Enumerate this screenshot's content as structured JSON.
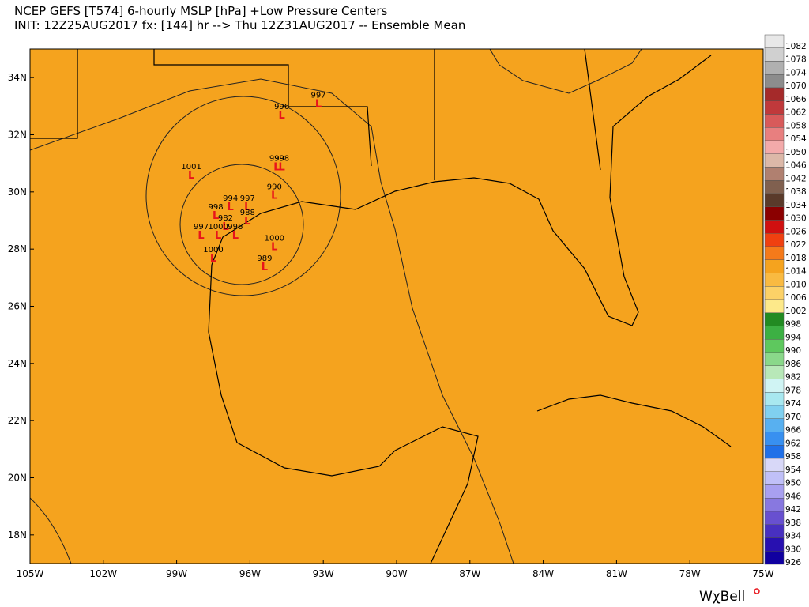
{
  "header": {
    "title": "NCEP GEFS [T574] 6-hourly MSLP [hPa]  +Low Pressure Centers",
    "subtitle": "INIT: 12Z25AUG2017 fx: [144] hr --> Thu 12Z31AUG2017 -- Ensemble Mean"
  },
  "map": {
    "xlim": [
      -105,
      -75
    ],
    "ylim": [
      17,
      35
    ],
    "xticks": [
      {
        "value": -105,
        "label": "105W"
      },
      {
        "value": -102,
        "label": "102W"
      },
      {
        "value": -99,
        "label": "99W"
      },
      {
        "value": -96,
        "label": "96W"
      },
      {
        "value": -93,
        "label": "93W"
      },
      {
        "value": -90,
        "label": "90W"
      },
      {
        "value": -87,
        "label": "87W"
      },
      {
        "value": -84,
        "label": "84W"
      },
      {
        "value": -81,
        "label": "81W"
      },
      {
        "value": -78,
        "label": "78W"
      },
      {
        "value": -75,
        "label": "75W"
      }
    ],
    "yticks": [
      {
        "value": 18,
        "label": "18N"
      },
      {
        "value": 20,
        "label": "20N"
      },
      {
        "value": 22,
        "label": "22N"
      },
      {
        "value": 24,
        "label": "24N"
      },
      {
        "value": 26,
        "label": "26N"
      },
      {
        "value": 28,
        "label": "28N"
      },
      {
        "value": 30,
        "label": "30N"
      },
      {
        "value": 32,
        "label": "32N"
      },
      {
        "value": 34,
        "label": "34N"
      }
    ],
    "low_symbol": "L",
    "lows": [
      {
        "pressure": 997,
        "lon": -93.2,
        "lat": 33.1
      },
      {
        "pressure": 996,
        "lon": -94.7,
        "lat": 32.7
      },
      {
        "pressure": 1001,
        "lon": -98.4,
        "lat": 30.6
      },
      {
        "pressure": 999,
        "lon": -94.9,
        "lat": 30.9
      },
      {
        "pressure": 998,
        "lon": -94.7,
        "lat": 30.9
      },
      {
        "pressure": 990,
        "lon": -95.0,
        "lat": 29.9
      },
      {
        "pressure": 994,
        "lon": -96.8,
        "lat": 29.5
      },
      {
        "pressure": 997,
        "lon": -96.1,
        "lat": 29.5
      },
      {
        "pressure": 998,
        "lon": -97.4,
        "lat": 29.2
      },
      {
        "pressure": 988,
        "lon": -96.1,
        "lat": 29.0
      },
      {
        "pressure": 982,
        "lon": -97.0,
        "lat": 28.8
      },
      {
        "pressure": 997,
        "lon": -98.0,
        "lat": 28.5
      },
      {
        "pressure": 1000,
        "lon": -97.3,
        "lat": 28.5
      },
      {
        "pressure": 996,
        "lon": -96.6,
        "lat": 28.5
      },
      {
        "pressure": 1000,
        "lon": -95.0,
        "lat": 28.1
      },
      {
        "pressure": 1000,
        "lon": -97.5,
        "lat": 27.7
      },
      {
        "pressure": 989,
        "lon": -95.4,
        "lat": 27.4
      }
    ]
  },
  "colorbar": {
    "levels": [
      1082,
      1078,
      1074,
      1070,
      1066,
      1062,
      1058,
      1054,
      1050,
      1046,
      1042,
      1038,
      1034,
      1030,
      1026,
      1022,
      1018,
      1014,
      1010,
      1006,
      1002,
      998,
      994,
      990,
      986,
      982,
      978,
      974,
      970,
      966,
      962,
      958,
      954,
      950,
      946,
      942,
      938,
      934,
      930,
      926
    ],
    "colors": [
      "#e8e8e8",
      "#d0d0d0",
      "#b0b0b0",
      "#8c8c8c",
      "#a52a2a",
      "#c0393b",
      "#d85a5a",
      "#e87f7f",
      "#f3aaaa",
      "#dcb8a8",
      "#b08070",
      "#80604f",
      "#5a3a2a",
      "#8b0000",
      "#d01010",
      "#f04010",
      "#f57a1a",
      "#f5a31e",
      "#f9ba41",
      "#fcd167",
      "#fde98a",
      "#228b22",
      "#3cb043",
      "#5ec85e",
      "#8ad88a",
      "#b8e8b8",
      "#d0f4f4",
      "#a8e8f0",
      "#80d0f0",
      "#58b0f0",
      "#3890f0",
      "#2070e8",
      "#d8d8f8",
      "#c0c0f8",
      "#a8a0f0",
      "#8878e0",
      "#6850d0",
      "#4830c0",
      "#2810b0",
      "#1000a0"
    ]
  },
  "logo": "WχBell"
}
